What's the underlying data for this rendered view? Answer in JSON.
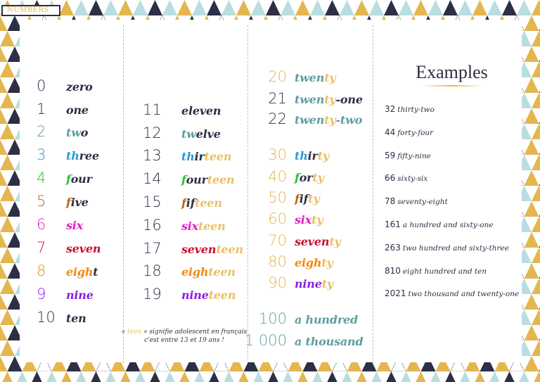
{
  "tag": {
    "label": "NUMBERS"
  },
  "colors": {
    "navy": "#2c2f45",
    "gold": "#e3b64f",
    "light_blue": "#b9dde0",
    "teal": "#5f9ea0",
    "blue": "#2a9ad6",
    "green": "#27c227",
    "brown": "#b5651d",
    "magenta": "#e01fc4",
    "red": "#c8102e",
    "orange": "#f08a12",
    "purple": "#8b1fe6",
    "teen_gold": "#e8c066"
  },
  "column1": [
    {
      "num": "0",
      "num_color": "#2c2f45",
      "parts": [
        {
          "t": "zero",
          "c": "#2c2f45"
        }
      ]
    },
    {
      "num": "1",
      "num_color": "#2c2f45",
      "parts": [
        {
          "t": "one",
          "c": "#2c2f45"
        }
      ]
    },
    {
      "num": "2",
      "num_color": "#5f9ea0",
      "parts": [
        {
          "t": "tw",
          "c": "#5f9ea0"
        },
        {
          "t": "o",
          "c": "#2c2f45"
        }
      ]
    },
    {
      "num": "3",
      "num_color": "#2a9ad6",
      "parts": [
        {
          "t": "th",
          "c": "#2a9ad6"
        },
        {
          "t": "ree",
          "c": "#2c2f45"
        }
      ]
    },
    {
      "num": "4",
      "num_color": "#27c227",
      "parts": [
        {
          "t": "f",
          "c": "#27c227"
        },
        {
          "t": "our",
          "c": "#2c2f45"
        }
      ]
    },
    {
      "num": "5",
      "num_color": "#b5651d",
      "parts": [
        {
          "t": "f",
          "c": "#b5651d"
        },
        {
          "t": "ive",
          "c": "#2c2f45"
        }
      ]
    },
    {
      "num": "6",
      "num_color": "#e01fc4",
      "parts": [
        {
          "t": "six",
          "c": "#e01fc4"
        }
      ]
    },
    {
      "num": "7",
      "num_color": "#c8102e",
      "parts": [
        {
          "t": "seven",
          "c": "#c8102e"
        }
      ]
    },
    {
      "num": "8",
      "num_color": "#f08a12",
      "parts": [
        {
          "t": "eigh",
          "c": "#f08a12"
        },
        {
          "t": "t",
          "c": "#2c2f45"
        }
      ]
    },
    {
      "num": "9",
      "num_color": "#8b1fe6",
      "parts": [
        {
          "t": "nine",
          "c": "#8b1fe6"
        }
      ]
    },
    {
      "num": "10",
      "num_color": "#2c2f45",
      "parts": [
        {
          "t": "ten",
          "c": "#2c2f45"
        }
      ]
    }
  ],
  "column2": [
    {
      "num": "11",
      "parts": [
        {
          "t": "eleven",
          "c": "#2c2f45"
        }
      ]
    },
    {
      "num": "12",
      "parts": [
        {
          "t": "tw",
          "c": "#5f9ea0"
        },
        {
          "t": "elve",
          "c": "#2c2f45"
        }
      ]
    },
    {
      "num": "13",
      "parts": [
        {
          "t": "th",
          "c": "#2a9ad6"
        },
        {
          "t": "ir",
          "c": "#2c2f45"
        },
        {
          "t": "teen",
          "c": "#e8c066"
        }
      ]
    },
    {
      "num": "14",
      "parts": [
        {
          "t": "f",
          "c": "#27c227"
        },
        {
          "t": "our",
          "c": "#2c2f45"
        },
        {
          "t": "teen",
          "c": "#e8c066"
        }
      ]
    },
    {
      "num": "15",
      "parts": [
        {
          "t": "f",
          "c": "#b5651d"
        },
        {
          "t": "if",
          "c": "#2c2f45"
        },
        {
          "t": "teen",
          "c": "#e8c066"
        }
      ]
    },
    {
      "num": "16",
      "parts": [
        {
          "t": "six",
          "c": "#e01fc4"
        },
        {
          "t": "teen",
          "c": "#e8c066"
        }
      ]
    },
    {
      "num": "17",
      "parts": [
        {
          "t": "seven",
          "c": "#c8102e"
        },
        {
          "t": "teen",
          "c": "#e8c066"
        }
      ]
    },
    {
      "num": "18",
      "parts": [
        {
          "t": "eigh",
          "c": "#f08a12"
        },
        {
          "t": "teen",
          "c": "#e8c066"
        }
      ]
    },
    {
      "num": "19",
      "parts": [
        {
          "t": "nine",
          "c": "#8b1fe6"
        },
        {
          "t": "teen",
          "c": "#e8c066"
        }
      ]
    }
  ],
  "teen_note": {
    "open_quote": "« ",
    "teen_word": "teen",
    "line1_rest": " » signifie adolescent en français",
    "line2": "c'est entre 13 et 19 ans !"
  },
  "column3": [
    {
      "num": "20",
      "num_color": "#e3b64f",
      "parts": [
        {
          "t": "twen",
          "c": "#5f9ea0"
        },
        {
          "t": "ty",
          "c": "#e8c066"
        }
      ]
    },
    {
      "num": "21",
      "num_color": "#2c2f45",
      "parts": [
        {
          "t": "twen",
          "c": "#5f9ea0"
        },
        {
          "t": "ty",
          "c": "#e8c066"
        },
        {
          "t": "-one",
          "c": "#2c2f45"
        }
      ]
    },
    {
      "num": "22",
      "num_color": "#2c2f45",
      "parts": [
        {
          "t": "twen",
          "c": "#5f9ea0"
        },
        {
          "t": "ty",
          "c": "#e8c066"
        },
        {
          "t": "-two",
          "c": "#5f9ea0"
        }
      ]
    },
    {
      "num": "30",
      "num_color": "#e3b64f",
      "parts": [
        {
          "t": "th",
          "c": "#2a9ad6"
        },
        {
          "t": "ir",
          "c": "#2c2f45"
        },
        {
          "t": "ty",
          "c": "#e8c066"
        }
      ]
    },
    {
      "num": "40",
      "num_color": "#e3b64f",
      "parts": [
        {
          "t": "f",
          "c": "#27c227"
        },
        {
          "t": "or",
          "c": "#2c2f45"
        },
        {
          "t": "ty",
          "c": "#e8c066"
        }
      ]
    },
    {
      "num": "50",
      "num_color": "#e3b64f",
      "parts": [
        {
          "t": "f",
          "c": "#b5651d"
        },
        {
          "t": "if",
          "c": "#2c2f45"
        },
        {
          "t": "ty",
          "c": "#e8c066"
        }
      ]
    },
    {
      "num": "60",
      "num_color": "#e3b64f",
      "parts": [
        {
          "t": "six",
          "c": "#e01fc4"
        },
        {
          "t": "ty",
          "c": "#e8c066"
        }
      ]
    },
    {
      "num": "70",
      "num_color": "#e3b64f",
      "parts": [
        {
          "t": "seven",
          "c": "#c8102e"
        },
        {
          "t": "ty",
          "c": "#e8c066"
        }
      ]
    },
    {
      "num": "80",
      "num_color": "#e3b64f",
      "parts": [
        {
          "t": "eigh",
          "c": "#f08a12"
        },
        {
          "t": "ty",
          "c": "#e8c066"
        }
      ]
    },
    {
      "num": "90",
      "num_color": "#e3b64f",
      "parts": [
        {
          "t": "nine",
          "c": "#8b1fe6"
        },
        {
          "t": "ty",
          "c": "#e8c066"
        }
      ]
    },
    {
      "num": "100",
      "num_color": "#5f9ea0",
      "parts": [
        {
          "t": "a hundred",
          "c": "#5f9ea0"
        }
      ]
    },
    {
      "num": "1 000",
      "num_color": "#5f9ea0",
      "parts": [
        {
          "t": "a thousand",
          "c": "#5f9ea0"
        }
      ]
    }
  ],
  "examples": {
    "title": "Examples",
    "items": [
      {
        "num": "32",
        "words": "thirty-two"
      },
      {
        "num": "44",
        "words": "forty-four"
      },
      {
        "num": "59",
        "words": "fifty-nine"
      },
      {
        "num": "66",
        "words": "sixty-six"
      },
      {
        "num": "78",
        "words": "seventy-eight"
      },
      {
        "num": "161",
        "words": "a hundred and sixty-one"
      },
      {
        "num": "263",
        "words": "two hundred and sixty-three"
      },
      {
        "num": "810",
        "words": "eight hundred and ten"
      },
      {
        "num": "2021",
        "words": "two thousand and twenty-one"
      }
    ]
  }
}
